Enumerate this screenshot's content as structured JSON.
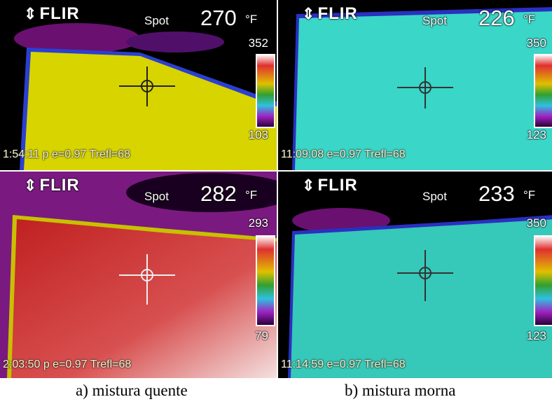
{
  "panels": [
    {
      "brand": "FLIR",
      "spot_label": "Spot",
      "spot_value": "270",
      "unit": "°F",
      "scale_max": "352",
      "scale_min": "103",
      "footer": "1:54:11 p e=0.97 Trefl=68"
    },
    {
      "brand": "FLIR",
      "spot_label": "Spot",
      "spot_value": "226",
      "unit": "°F",
      "scale_max": "350",
      "scale_min": "123",
      "footer": "11:09:08 e=0.97 Trefl=68"
    },
    {
      "brand": "FLIR",
      "spot_label": "Spot",
      "spot_value": "282",
      "unit": "°F",
      "scale_max": "293",
      "scale_min": "79",
      "footer": "2:03:50 p e=0.97 Trefl=68"
    },
    {
      "brand": "FLIR",
      "spot_label": "Spot",
      "spot_value": "233",
      "unit": "°F",
      "scale_max": "350",
      "scale_min": "123",
      "footer": "11:14:59 e=0.97 Trefl=68"
    }
  ],
  "captions": [
    "a) mistura quente",
    "b) mistura morna"
  ]
}
